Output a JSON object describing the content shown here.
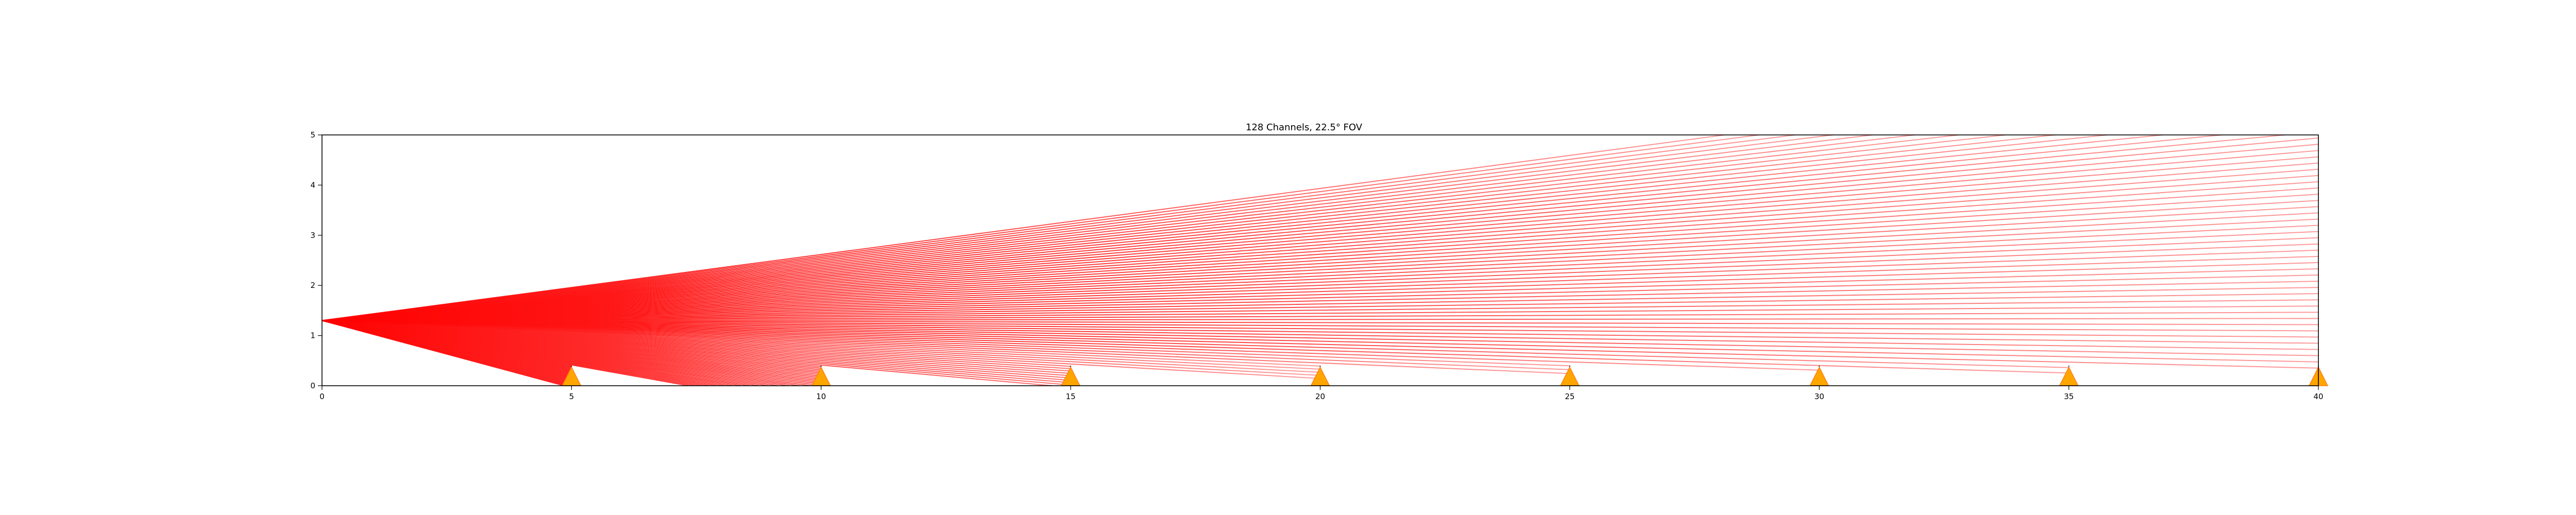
{
  "chart_data": {
    "type": "line",
    "title": "128 Channels, 22.5° FOV",
    "xlabel": "",
    "ylabel": "",
    "xlim": [
      0,
      40
    ],
    "ylim": [
      0,
      5
    ],
    "x_ticks": [
      "0",
      "5",
      "10",
      "15",
      "20",
      "25",
      "30",
      "35",
      "40"
    ],
    "y_ticks": [
      "0",
      "1",
      "2",
      "3",
      "4",
      "5"
    ],
    "grid": false,
    "legend": "none",
    "sensor": {
      "x": 0,
      "y": 1.3
    },
    "channels": 128,
    "fov_degrees": 22.5,
    "beam_angle_range_deg": [
      -15,
      7.5
    ],
    "beam_color_near": "#ff0000",
    "beam_color_far": "#ff9a9a",
    "obstacles": {
      "x": [
        5,
        10,
        15,
        20,
        25,
        30,
        35,
        40
      ],
      "height": 0.4,
      "edge_color": "#000000",
      "marker_color": "#ffa500",
      "marker_edge_color": "#ff7f0e"
    },
    "ground_y": 0
  }
}
